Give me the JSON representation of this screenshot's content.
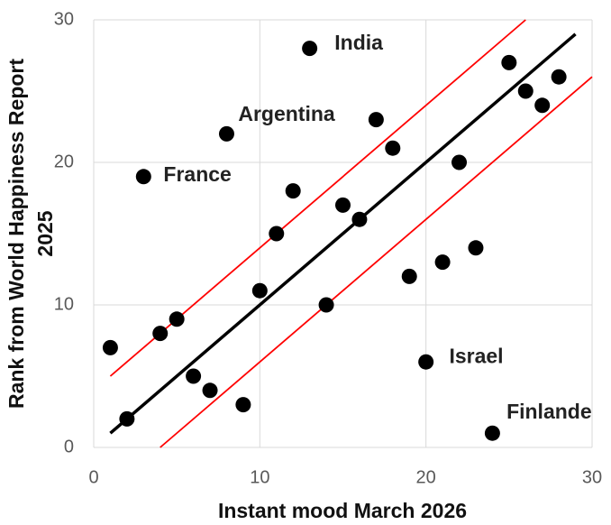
{
  "chart_data": {
    "type": "scatter",
    "x_label": "Instant mood March 2026",
    "y_label": [
      "Rank from World Happiness Report",
      "2025"
    ],
    "xlim": [
      0,
      30
    ],
    "ylim": [
      0,
      30
    ],
    "xticks": [
      0,
      10,
      20,
      30
    ],
    "yticks": [
      0,
      10,
      20,
      30
    ],
    "grid": true,
    "series": [
      {
        "type": "scatter",
        "color": "#000000",
        "x": [
          1,
          2,
          3,
          4,
          5,
          6,
          7,
          8,
          9,
          10,
          11,
          12,
          13,
          14,
          15,
          16,
          17,
          18,
          19,
          20,
          21,
          22,
          23,
          24,
          25,
          26,
          27,
          28
        ],
        "values": [
          7,
          2,
          19,
          8,
          9,
          5,
          4,
          22,
          3,
          11,
          15,
          18,
          28,
          10,
          17,
          16,
          23,
          21,
          12,
          6,
          13,
          20,
          14,
          1,
          27,
          25,
          24,
          26
        ]
      },
      {
        "type": "line",
        "color": "#000000",
        "x": [
          1,
          29
        ],
        "values": [
          1,
          29
        ]
      },
      {
        "type": "line",
        "color": "#ff0000",
        "x": [
          1,
          26
        ],
        "values": [
          5,
          30
        ]
      },
      {
        "type": "line",
        "color": "#ff0000",
        "x": [
          4,
          30
        ],
        "values": [
          0,
          26
        ]
      }
    ],
    "annotations": [
      {
        "text": "India",
        "x": 14.5,
        "y": 28.3
      },
      {
        "text": "Argentina",
        "x": 8.7,
        "y": 23.3
      },
      {
        "text": "France",
        "x": 4.2,
        "y": 19.05
      },
      {
        "text": "Israel",
        "x": 21.4,
        "y": 6.3
      },
      {
        "text": "Finlande",
        "x": 24.85,
        "y": 2.4
      }
    ]
  }
}
